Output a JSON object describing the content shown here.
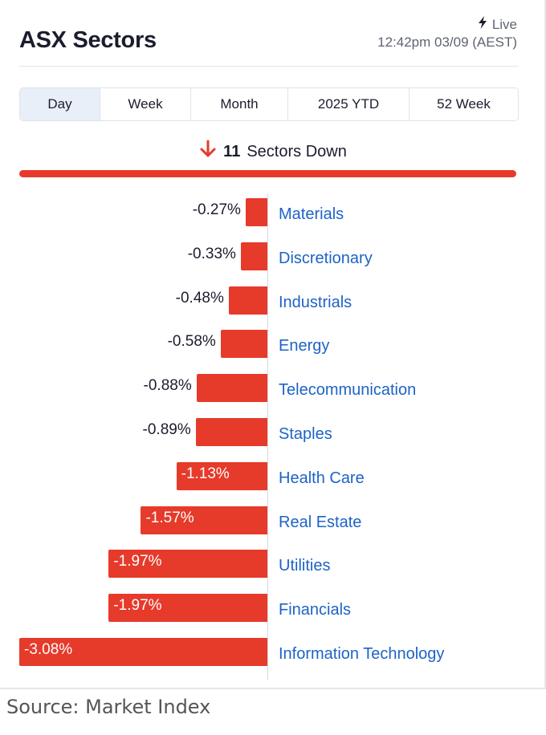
{
  "header": {
    "title": "ASX Sectors",
    "live_label": "Live",
    "timestamp": "12:42pm 03/09 (AEST)"
  },
  "tabs": [
    {
      "label": "Day",
      "active": true
    },
    {
      "label": "Week",
      "active": false
    },
    {
      "label": "Month",
      "active": false
    },
    {
      "label": "2025 YTD",
      "active": false
    },
    {
      "label": "52 Week",
      "active": false
    }
  ],
  "summary": {
    "count": "11",
    "text": "Sectors Down"
  },
  "colors": {
    "negative": "#e63a2b",
    "link": "#1e63c6",
    "tab_active": "#e8eff8"
  },
  "chart_data": {
    "type": "bar",
    "orientation": "horizontal",
    "categories": [
      "Materials",
      "Discretionary",
      "Industrials",
      "Energy",
      "Telecommunication",
      "Staples",
      "Health Care",
      "Real Estate",
      "Utilities",
      "Financials",
      "Information Technology"
    ],
    "values": [
      -0.27,
      -0.33,
      -0.48,
      -0.58,
      -0.88,
      -0.89,
      -1.13,
      -1.57,
      -1.97,
      -1.97,
      -3.08
    ],
    "value_labels": [
      "-0.27%",
      "-0.33%",
      "-0.48%",
      "-0.58%",
      "-0.88%",
      "-0.89%",
      "-1.13%",
      "-1.57%",
      "-1.97%",
      "-1.97%",
      "-3.08%"
    ]
  },
  "source": "Source: Market Index"
}
